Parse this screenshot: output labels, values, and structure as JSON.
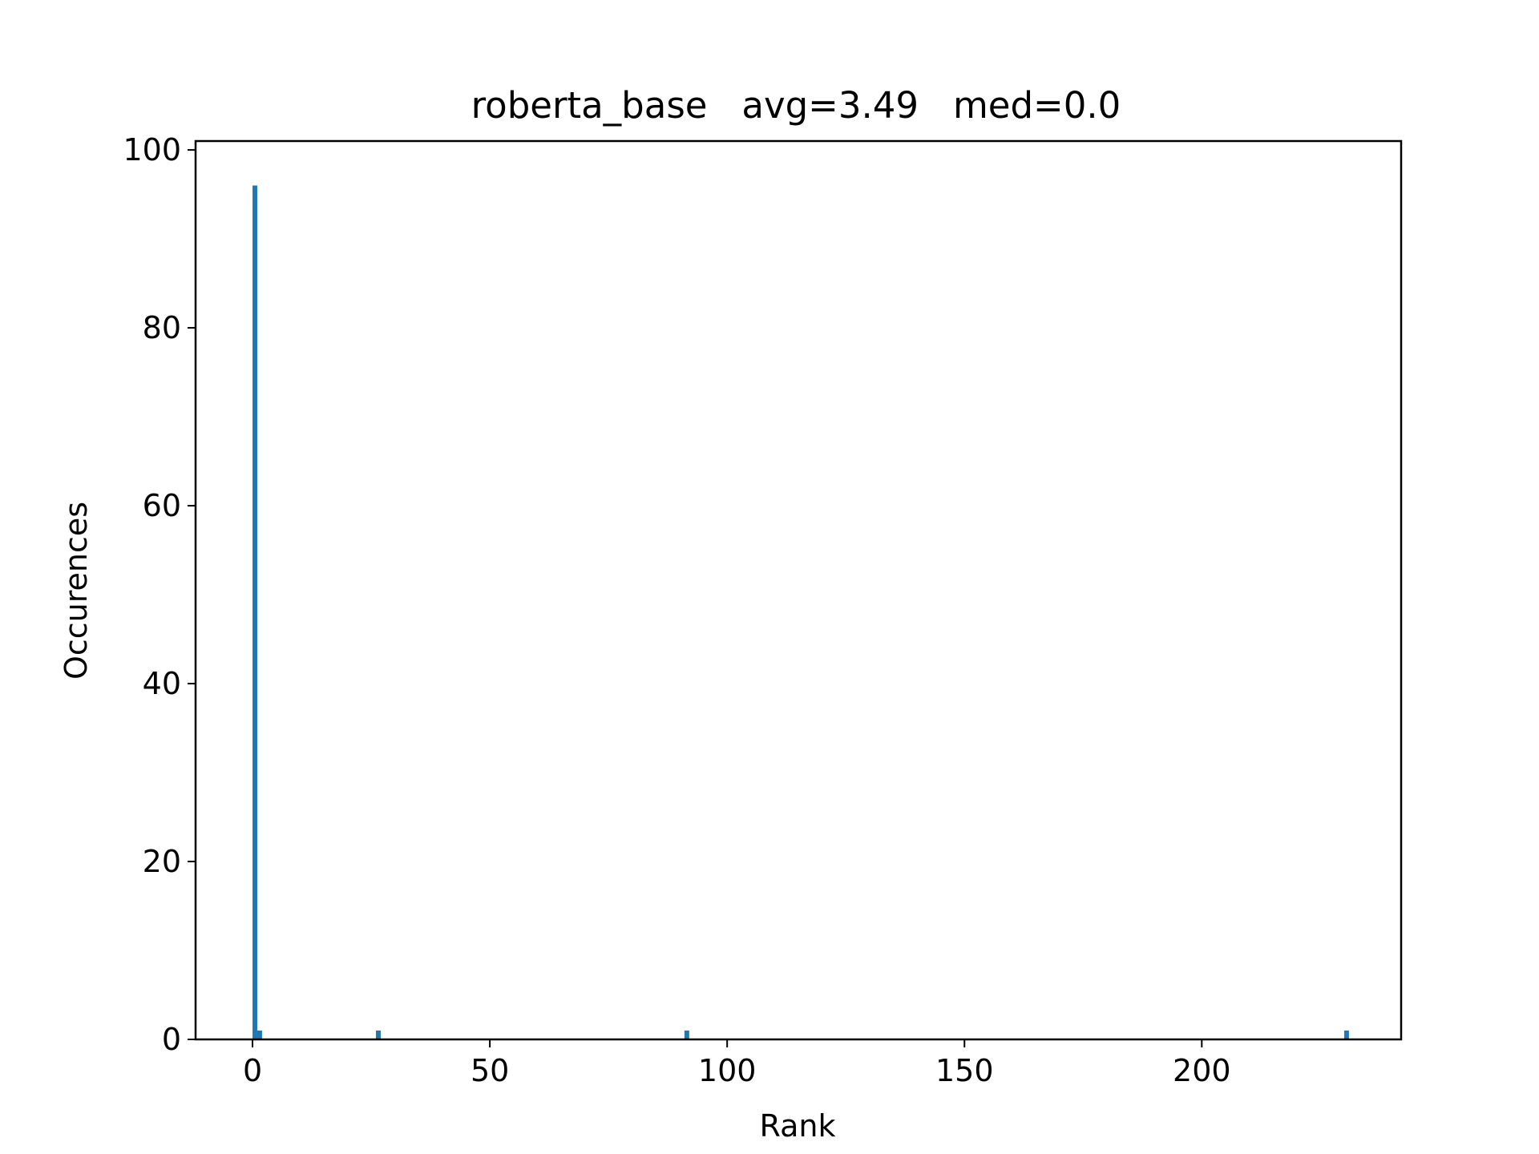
{
  "chart_data": {
    "type": "bar",
    "title": "roberta_base   avg=3.49   med=0.0",
    "xlabel": "Rank",
    "ylabel": "Occurences",
    "xlim": [
      -12,
      242
    ],
    "ylim": [
      0,
      101
    ],
    "xticks": [
      0,
      50,
      100,
      150,
      200
    ],
    "yticks": [
      0,
      20,
      40,
      60,
      80,
      100
    ],
    "bar_width": 1,
    "bars": [
      {
        "x": 0,
        "value": 96
      },
      {
        "x": 1,
        "value": 1
      },
      {
        "x": 26,
        "value": 1
      },
      {
        "x": 91,
        "value": 1
      },
      {
        "x": 230,
        "value": 1
      }
    ],
    "color": "#1f77b4",
    "grid": false
  }
}
